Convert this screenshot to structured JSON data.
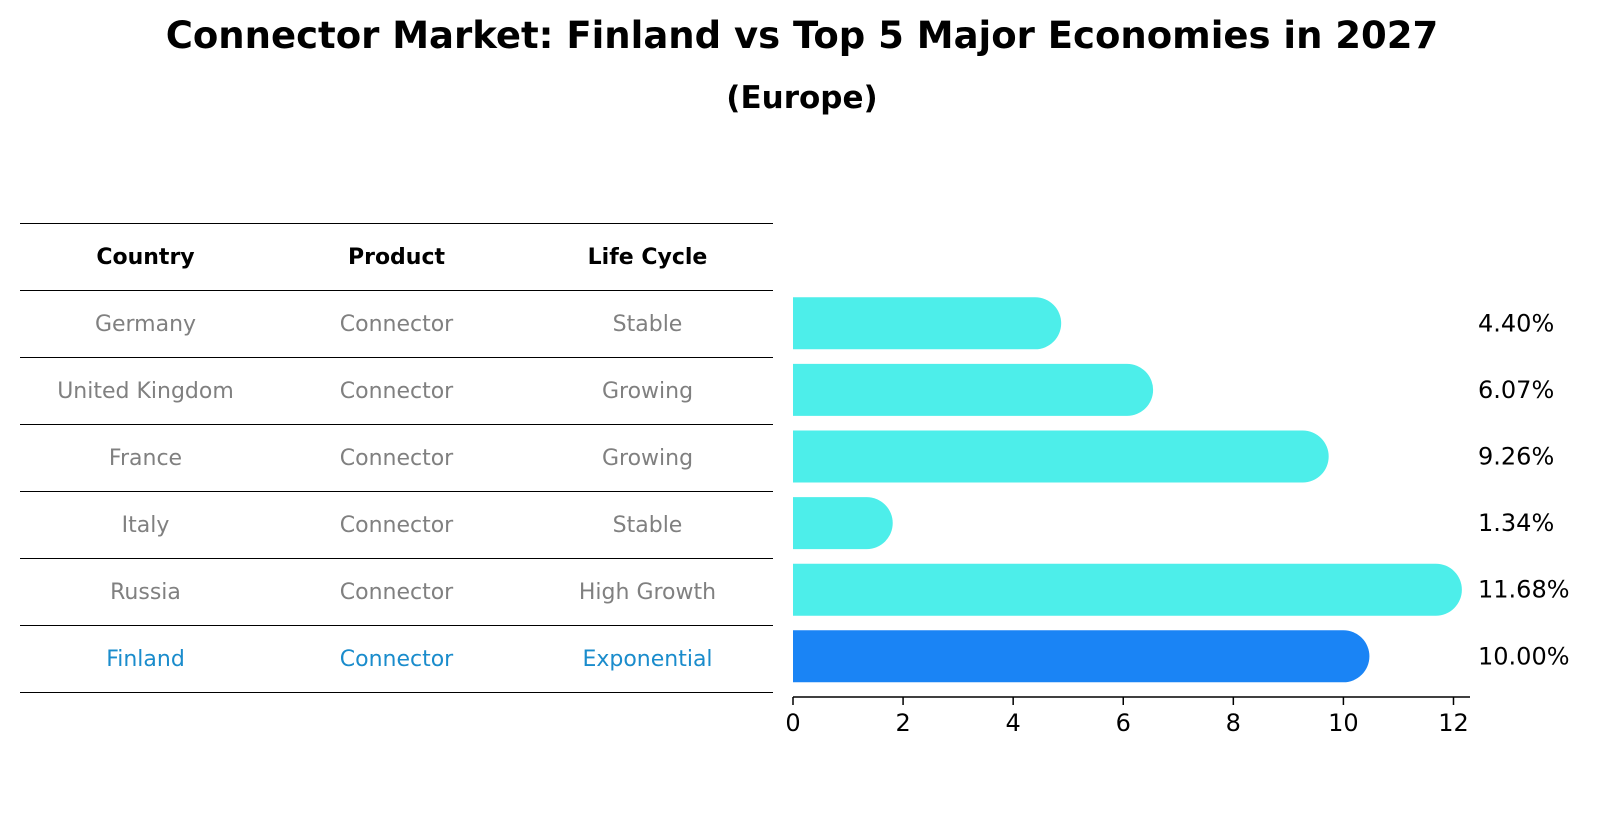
{
  "header": {
    "title": "Connector Market: Finland vs Top 5 Major Economies in 2027",
    "subtitle": "(Europe)"
  },
  "table": {
    "columns": [
      "Country",
      "Product",
      "Life Cycle"
    ],
    "rows": [
      {
        "country": "Germany",
        "product": "Connector",
        "life_cycle": "Stable"
      },
      {
        "country": "United Kingdom",
        "product": "Connector",
        "life_cycle": "Growing"
      },
      {
        "country": "France",
        "product": "Connector",
        "life_cycle": "Growing"
      },
      {
        "country": "Italy",
        "product": "Connector",
        "life_cycle": "Stable"
      },
      {
        "country": "Russia",
        "product": "Connector",
        "life_cycle": "High Growth"
      },
      {
        "country": "Finland",
        "product": "Connector",
        "life_cycle": "Exponential"
      }
    ]
  },
  "chart_data": {
    "type": "bar",
    "orientation": "horizontal",
    "categories": [
      "Germany",
      "United Kingdom",
      "France",
      "Italy",
      "Russia",
      "Finland"
    ],
    "values": [
      4.4,
      6.07,
      9.26,
      1.34,
      11.68,
      10.0
    ],
    "value_labels": [
      "4.40%",
      "6.07%",
      "9.26%",
      "1.34%",
      "11.68%",
      "10.00%"
    ],
    "highlight": "Finland",
    "xlim": [
      0,
      12.3
    ],
    "xticks": [
      0,
      2,
      4,
      6,
      8,
      10,
      12
    ],
    "xtick_labels": [
      "0",
      "2",
      "4",
      "6",
      "8",
      "10",
      "12"
    ],
    "title": "Connector Market: Finland vs Top 5 Major Economies in 2027",
    "subtitle": "(Europe)",
    "xlabel": "",
    "ylabel": "",
    "grid": false,
    "colors": {
      "default": "#4deeea",
      "highlight": "#1a84f5"
    }
  }
}
